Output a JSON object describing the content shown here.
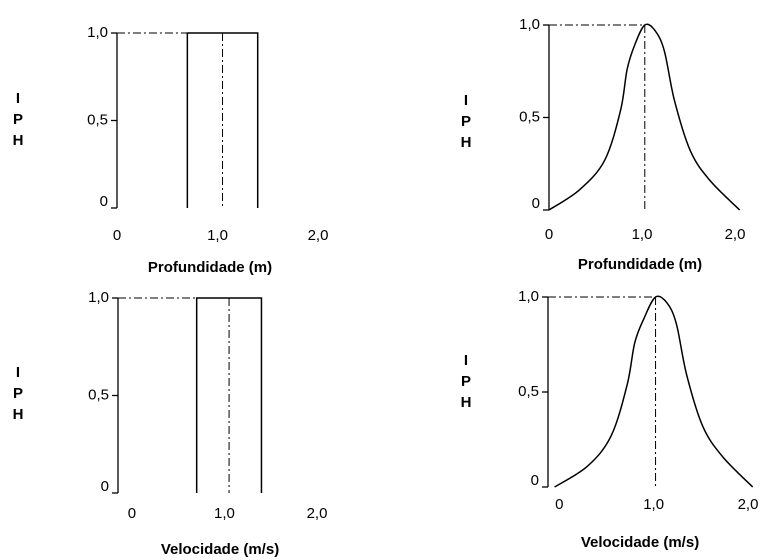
{
  "chart_data": [
    {
      "type": "line",
      "xlabel": "Profundidade (m)",
      "ylabel": "IPH",
      "x": [
        0.7,
        0.7,
        1.4,
        1.4
      ],
      "values": [
        0,
        1,
        1,
        0
      ],
      "xlim": [
        0,
        2
      ],
      "ylim": [
        0,
        1
      ],
      "xticks": [
        0,
        {
          "value": 1,
          "label": "1,0"
        },
        {
          "value": 2,
          "label": "2,0"
        }
      ],
      "yticks": [
        0,
        {
          "value": 0.5,
          "label": "0,5"
        },
        {
          "value": 1,
          "label": "1,0"
        }
      ]
    },
    {
      "type": "line",
      "xlabel": "Profundidade (m)",
      "ylabel": "IPH",
      "x": [
        0,
        0.33,
        0.6,
        0.77,
        0.84,
        0.92,
        1.03,
        1.14,
        1.24,
        1.35,
        1.52,
        1.73,
        2.05
      ],
      "values": [
        0,
        0.11,
        0.27,
        0.54,
        0.76,
        0.89,
        1.0,
        0.97,
        0.86,
        0.59,
        0.32,
        0.16,
        0
      ],
      "xlim": [
        0,
        2
      ],
      "ylim": [
        0,
        1
      ],
      "xticks": [
        0,
        {
          "value": 1,
          "label": "1,0"
        },
        {
          "value": 2,
          "label": "2,0"
        }
      ],
      "yticks": [
        0,
        {
          "value": 0.5,
          "label": "0,5"
        },
        {
          "value": 1,
          "label": "1,0"
        }
      ]
    },
    {
      "type": "line",
      "xlabel": "Velocidade (m/s)",
      "ylabel": "IPH",
      "x": [
        0.7,
        0.7,
        1.4,
        1.4
      ],
      "values": [
        0,
        1,
        1,
        0
      ],
      "xlim": [
        -0.15,
        2
      ],
      "ylim": [
        0,
        1
      ],
      "xticks": [
        0,
        {
          "value": 1,
          "label": "1,0"
        },
        {
          "value": 2,
          "label": "2,0"
        }
      ],
      "yticks": [
        0,
        {
          "value": 0.5,
          "label": "0,5"
        },
        {
          "value": 1,
          "label": "1,0"
        }
      ]
    },
    {
      "type": "line",
      "xlabel": "Velocidade (m/s)",
      "ylabel": "IPH",
      "x": [
        -0.05,
        0.3,
        0.55,
        0.72,
        0.8,
        0.9,
        1.02,
        1.14,
        1.24,
        1.35,
        1.52,
        1.73,
        2.05
      ],
      "values": [
        0,
        0.11,
        0.27,
        0.54,
        0.76,
        0.89,
        1.0,
        0.97,
        0.86,
        0.59,
        0.32,
        0.16,
        0
      ],
      "xlim": [
        -0.12,
        2
      ],
      "ylim": [
        0,
        1
      ],
      "xticks": [
        0,
        {
          "value": 1,
          "label": "1,0"
        },
        {
          "value": 2,
          "label": "2,0"
        }
      ],
      "yticks": [
        0,
        {
          "value": 0.5,
          "label": "0,5"
        },
        {
          "value": 1,
          "label": "1,0"
        }
      ]
    }
  ]
}
